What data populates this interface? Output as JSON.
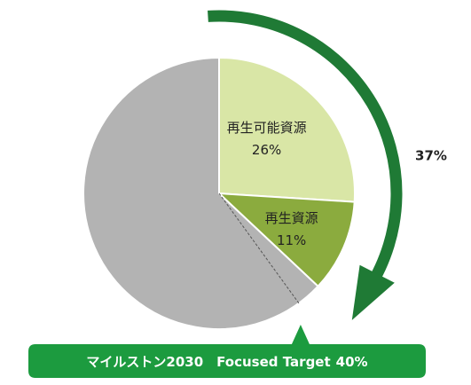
{
  "chart_data": {
    "type": "pie",
    "categories": [
      "再生可能資源",
      "再生資源",
      null
    ],
    "values": [
      26,
      11,
      63
    ],
    "value_labels": [
      "26%",
      "11%",
      null
    ],
    "colors": [
      "#d9e6a6",
      "#8bab3e",
      "#b3b3b3"
    ],
    "arrow": {
      "value": 37,
      "label": "37%",
      "color": "#1f7a35"
    },
    "callout": {
      "text": "マイルストン2030　Focused Target",
      "value": 40,
      "label": "40%",
      "color": "#1c9b3f"
    }
  }
}
